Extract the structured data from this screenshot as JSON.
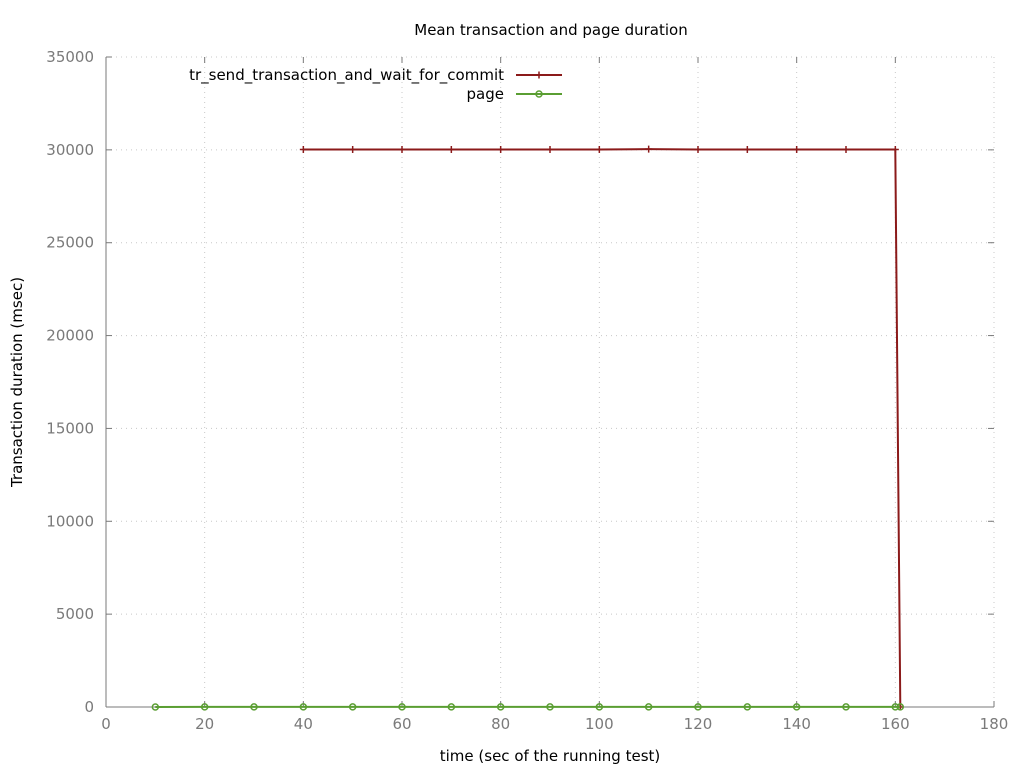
{
  "chart_data": {
    "type": "line",
    "title": "Mean transaction and page duration",
    "xlabel": "time (sec of the running test)",
    "ylabel": "Transaction duration (msec)",
    "xlim": [
      0,
      180
    ],
    "ylim": [
      0,
      35000
    ],
    "xticks": [
      0,
      20,
      40,
      60,
      80,
      100,
      120,
      140,
      160,
      180
    ],
    "yticks": [
      0,
      5000,
      10000,
      15000,
      20000,
      25000,
      30000,
      35000
    ],
    "grid": true,
    "legend_position": "top-center",
    "series": [
      {
        "name": "tr_send_transaction_and_wait_for_commit",
        "color": "#8b1a1a",
        "marker": "plus",
        "x": [
          40,
          50,
          60,
          70,
          80,
          90,
          100,
          110,
          120,
          130,
          140,
          150,
          160,
          161
        ],
        "y": [
          30020,
          30020,
          30020,
          30020,
          30020,
          30020,
          30020,
          30040,
          30020,
          30020,
          30020,
          30020,
          30020,
          0
        ]
      },
      {
        "name": "page",
        "color": "#5a9e32",
        "marker": "circle",
        "x": [
          10,
          20,
          30,
          40,
          50,
          60,
          70,
          80,
          90,
          100,
          110,
          120,
          130,
          140,
          150,
          160,
          161
        ],
        "y": [
          0,
          5,
          5,
          5,
          5,
          5,
          5,
          5,
          5,
          5,
          5,
          5,
          5,
          5,
          5,
          5,
          5
        ]
      }
    ]
  }
}
